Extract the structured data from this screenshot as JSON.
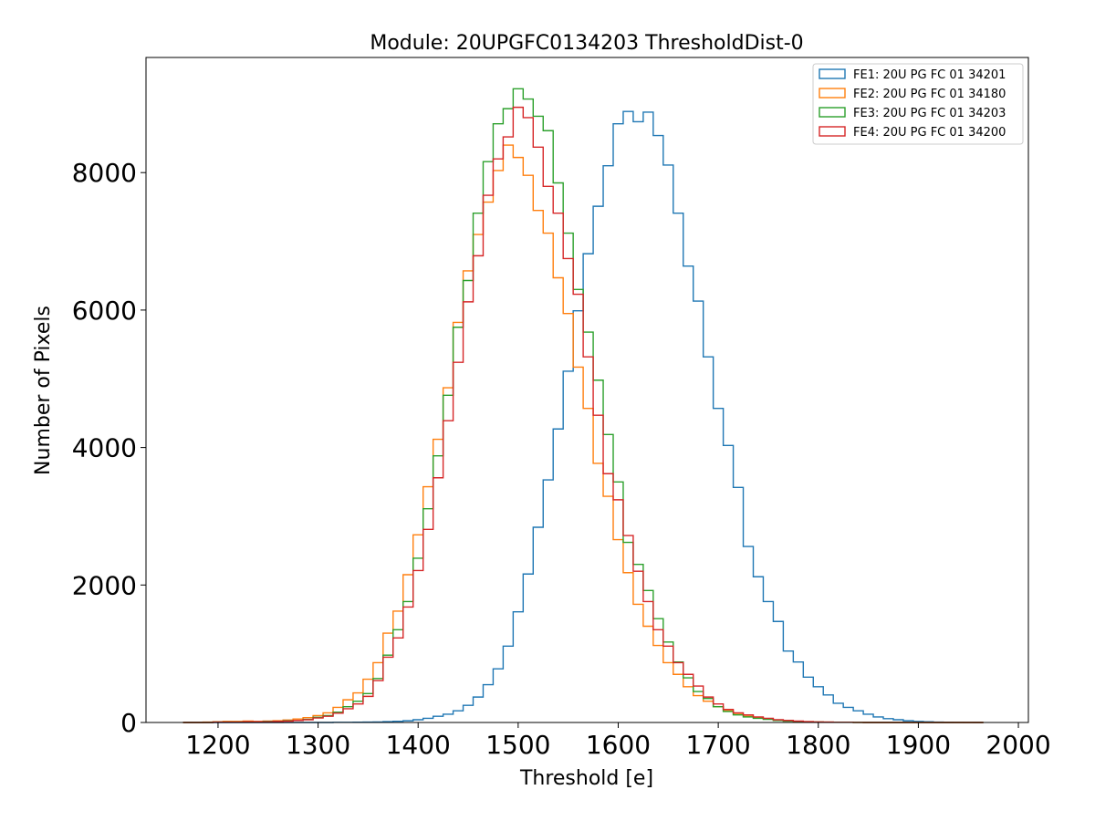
{
  "chart_data": {
    "type": "histogram-step",
    "title": "Module: 20UPGFC0134203 ThresholdDist-0",
    "xlabel": "Threshold [e]",
    "ylabel": "Number of Pixels",
    "xlim": [
      1128,
      2010
    ],
    "ylim": [
      0,
      9675
    ],
    "x_ticks": [
      1200,
      1300,
      1400,
      1500,
      1600,
      1700,
      1800,
      1900,
      2000
    ],
    "y_ticks": [
      0,
      2000,
      4000,
      6000,
      8000
    ],
    "grid": false,
    "legend_position": "top-right",
    "bin_start": 1165,
    "bin_width": 10,
    "series": [
      {
        "name": "FE1: 20U PG FC 01 34201",
        "color": "#1f77b4",
        "values": [
          0,
          0,
          0,
          0,
          0,
          0,
          0,
          0,
          0,
          0,
          0,
          0,
          0,
          0,
          0,
          2,
          3,
          4,
          6,
          8,
          12,
          18,
          25,
          40,
          60,
          90,
          120,
          170,
          250,
          370,
          550,
          780,
          1110,
          1610,
          2160,
          2840,
          3530,
          4270,
          5110,
          5990,
          6820,
          7510,
          8100,
          8710,
          8890,
          8740,
          8880,
          8540,
          8110,
          7410,
          6640,
          6130,
          5320,
          4570,
          4030,
          3420,
          2560,
          2120,
          1760,
          1470,
          1040,
          880,
          660,
          520,
          400,
          280,
          220,
          170,
          120,
          80,
          55,
          40,
          25,
          15,
          10,
          6,
          4,
          2,
          1,
          0
        ]
      },
      {
        "name": "FE2: 20U PG FC 01 34180",
        "color": "#ff7f0e",
        "values": [
          0,
          0,
          5,
          10,
          15,
          15,
          20,
          15,
          20,
          25,
          35,
          50,
          70,
          100,
          140,
          220,
          330,
          430,
          630,
          870,
          1300,
          1620,
          2150,
          2730,
          3430,
          4120,
          4870,
          5820,
          6570,
          7100,
          7570,
          8030,
          8400,
          8220,
          7960,
          7450,
          7120,
          6470,
          5950,
          5170,
          4570,
          3770,
          3290,
          2660,
          2180,
          1720,
          1400,
          1120,
          870,
          700,
          520,
          390,
          310,
          230,
          170,
          120,
          90,
          70,
          50,
          35,
          25,
          18,
          12,
          8,
          5,
          3,
          2,
          1,
          0,
          0,
          0,
          0,
          0,
          0,
          0,
          0,
          0,
          0,
          0,
          0
        ]
      },
      {
        "name": "FE3: 20U PG FC 01 34203",
        "color": "#2ca02c",
        "values": [
          0,
          0,
          0,
          5,
          5,
          5,
          10,
          10,
          15,
          15,
          25,
          30,
          45,
          75,
          100,
          150,
          230,
          310,
          420,
          640,
          980,
          1350,
          1760,
          2390,
          3110,
          3880,
          4760,
          5750,
          6430,
          7410,
          8160,
          8710,
          8930,
          9220,
          9070,
          8820,
          8610,
          7850,
          7120,
          6300,
          5680,
          4980,
          4190,
          3500,
          2620,
          2300,
          1920,
          1510,
          1170,
          880,
          650,
          450,
          350,
          230,
          160,
          110,
          80,
          60,
          45,
          30,
          20,
          14,
          9,
          6,
          4,
          3,
          2,
          1,
          0,
          0,
          0,
          0,
          0,
          0,
          0,
          0,
          0,
          0,
          0,
          0
        ]
      },
      {
        "name": "FE4: 20U PG FC 01 34200",
        "color": "#d62728",
        "values": [
          0,
          0,
          0,
          5,
          5,
          5,
          10,
          10,
          10,
          15,
          20,
          30,
          40,
          65,
          90,
          135,
          200,
          270,
          380,
          610,
          950,
          1230,
          1680,
          2210,
          2810,
          3560,
          4390,
          5240,
          6120,
          6790,
          7670,
          8200,
          8520,
          8950,
          8800,
          8370,
          7800,
          7410,
          6750,
          6230,
          5320,
          4470,
          3620,
          3240,
          2720,
          2200,
          1760,
          1350,
          1110,
          870,
          700,
          530,
          370,
          270,
          190,
          140,
          110,
          80,
          60,
          40,
          30,
          20,
          12,
          8,
          5,
          3,
          2,
          1,
          0,
          0,
          0,
          0,
          0,
          0,
          0,
          0,
          0,
          0,
          0,
          0
        ]
      }
    ]
  }
}
